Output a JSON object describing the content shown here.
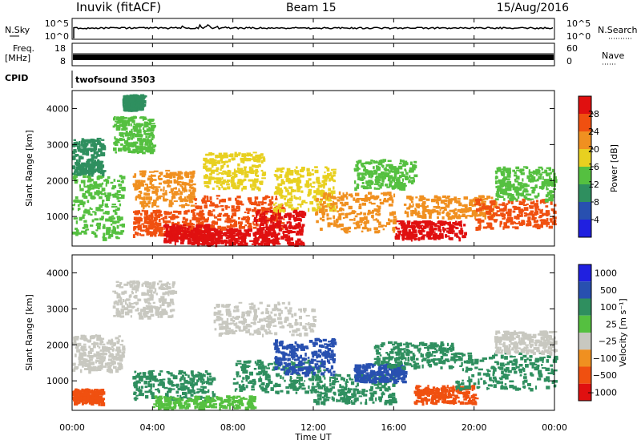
{
  "header": {
    "station": "Inuvik (fitACF)",
    "beam": "Beam 15",
    "date": "15/Aug/2016"
  },
  "top_panels": {
    "nsky_label": "N.Sky",
    "nsky_ticks": [
      "10^5",
      "10^0"
    ],
    "nsearch_label": "N.Search",
    "nsearch_ticks": [
      "10^5",
      "10^0"
    ],
    "freq_label_top": "Freq.",
    "freq_label_units": "[MHz]",
    "freq_ticks": [
      "18",
      "8"
    ],
    "nave_label": "Nave",
    "nave_ticks": [
      "60",
      "0"
    ],
    "cpid_label": "CPID",
    "cpid_value": "twofsound 3503"
  },
  "x_axis": {
    "label": "Time UT",
    "ticks": [
      "00:00",
      "04:00",
      "08:00",
      "12:00",
      "16:00",
      "20:00",
      "00:00"
    ]
  },
  "colors": {
    "scale": [
      "#2020e0",
      "#2850b0",
      "#2f8f5f",
      "#55c040",
      "#e8d020",
      "#f09020",
      "#f05010",
      "#e01010"
    ],
    "velocity_scale": [
      "#e01010",
      "#f05010",
      "#f09020",
      "#c8c8c0",
      "#55c040",
      "#2f8f5f",
      "#2850b0",
      "#2020e0"
    ]
  },
  "chart_data": [
    {
      "type": "heatmap",
      "title": "",
      "ylabel": "Slant Range [km]",
      "xlabel": "",
      "x_range": [
        "00:00",
        "24:00"
      ],
      "ylim": [
        180,
        4500
      ],
      "y_ticks": [
        "4000",
        "3000",
        "2000",
        "1000"
      ],
      "colorbar_label": "Power [dB]",
      "colorbar_ticks": [
        "28",
        "24",
        "20",
        "16",
        "12",
        "8",
        "4"
      ],
      "colorbar_range": [
        0,
        32
      ],
      "scatter_regions": [
        {
          "t0": 0.0,
          "t1": 2.5,
          "r0": 400,
          "r1": 2200,
          "level": 12
        },
        {
          "t0": 0.0,
          "t1": 1.5,
          "r0": 2200,
          "r1": 3200,
          "level": 8
        },
        {
          "t0": 2.0,
          "t1": 4.0,
          "r0": 2800,
          "r1": 3800,
          "level": 10
        },
        {
          "t0": 2.5,
          "t1": 3.5,
          "r0": 4000,
          "r1": 4400,
          "level": 6
        },
        {
          "t0": 3.0,
          "t1": 6.0,
          "r0": 1300,
          "r1": 2300,
          "level": 20
        },
        {
          "t0": 3.0,
          "t1": 6.5,
          "r0": 500,
          "r1": 1200,
          "level": 24
        },
        {
          "t0": 4.5,
          "t1": 7.0,
          "r0": 300,
          "r1": 800,
          "level": 28
        },
        {
          "t0": 6.0,
          "t1": 10.0,
          "r0": 250,
          "r1": 700,
          "level": 30
        },
        {
          "t0": 6.0,
          "t1": 10.5,
          "r0": 700,
          "r1": 1600,
          "level": 22
        },
        {
          "t0": 6.5,
          "t1": 9.5,
          "r0": 1800,
          "r1": 2800,
          "level": 16
        },
        {
          "t0": 9.0,
          "t1": 11.5,
          "r0": 250,
          "r1": 1200,
          "level": 26
        },
        {
          "t0": 10.0,
          "t1": 13.0,
          "r0": 1200,
          "r1": 2400,
          "level": 14
        },
        {
          "t0": 12.0,
          "t1": 16.0,
          "r0": 600,
          "r1": 1700,
          "level": 18
        },
        {
          "t0": 14.0,
          "t1": 17.0,
          "r0": 1800,
          "r1": 2600,
          "level": 12
        },
        {
          "t0": 16.0,
          "t1": 19.5,
          "r0": 400,
          "r1": 900,
          "level": 26
        },
        {
          "t0": 16.5,
          "t1": 21.0,
          "r0": 1000,
          "r1": 1600,
          "level": 20
        },
        {
          "t0": 20.0,
          "t1": 24.0,
          "r0": 700,
          "r1": 1500,
          "level": 22
        },
        {
          "t0": 21.0,
          "t1": 24.0,
          "r0": 1500,
          "r1": 2400,
          "level": 12
        }
      ]
    },
    {
      "type": "heatmap",
      "title": "",
      "ylabel": "Slant Range [km]",
      "xlabel": "Time UT",
      "x_range": [
        "00:00",
        "24:00"
      ],
      "ylim": [
        180,
        4500
      ],
      "y_ticks": [
        "4000",
        "3000",
        "2000",
        "1000"
      ],
      "colorbar_label": "Velocity [m s⁻¹]",
      "colorbar_ticks": [
        "1000",
        "500",
        "100",
        "25",
        "−25",
        "−100",
        "−500",
        "−1000"
      ],
      "scatter_regions": [
        {
          "t0": 0.0,
          "t1": 2.5,
          "r0": 1300,
          "r1": 2300,
          "level": 0
        },
        {
          "t0": 0.0,
          "t1": 1.5,
          "r0": 400,
          "r1": 800,
          "level": -300
        },
        {
          "t0": 2.0,
          "t1": 5.0,
          "r0": 2800,
          "r1": 3800,
          "level": 0
        },
        {
          "t0": 3.0,
          "t1": 7.0,
          "r0": 500,
          "r1": 1300,
          "level": 150
        },
        {
          "t0": 4.0,
          "t1": 9.0,
          "r0": 250,
          "r1": 600,
          "level": 60
        },
        {
          "t0": 7.0,
          "t1": 12.0,
          "r0": 2300,
          "r1": 3200,
          "level": 0
        },
        {
          "t0": 8.0,
          "t1": 12.5,
          "r0": 700,
          "r1": 1600,
          "level": 250
        },
        {
          "t0": 10.0,
          "t1": 13.0,
          "r0": 1200,
          "r1": 2200,
          "level": 700
        },
        {
          "t0": 12.0,
          "t1": 16.0,
          "r0": 400,
          "r1": 1200,
          "level": 200
        },
        {
          "t0": 14.0,
          "t1": 16.5,
          "r0": 1000,
          "r1": 1500,
          "level": 800
        },
        {
          "t0": 15.0,
          "t1": 19.0,
          "r0": 1400,
          "r1": 2100,
          "level": 300
        },
        {
          "t0": 17.0,
          "t1": 20.0,
          "r0": 400,
          "r1": 900,
          "level": -400
        },
        {
          "t0": 19.0,
          "t1": 24.0,
          "r0": 800,
          "r1": 1800,
          "level": 250
        },
        {
          "t0": 21.0,
          "t1": 24.0,
          "r0": 1800,
          "r1": 2400,
          "level": 0
        }
      ]
    }
  ]
}
